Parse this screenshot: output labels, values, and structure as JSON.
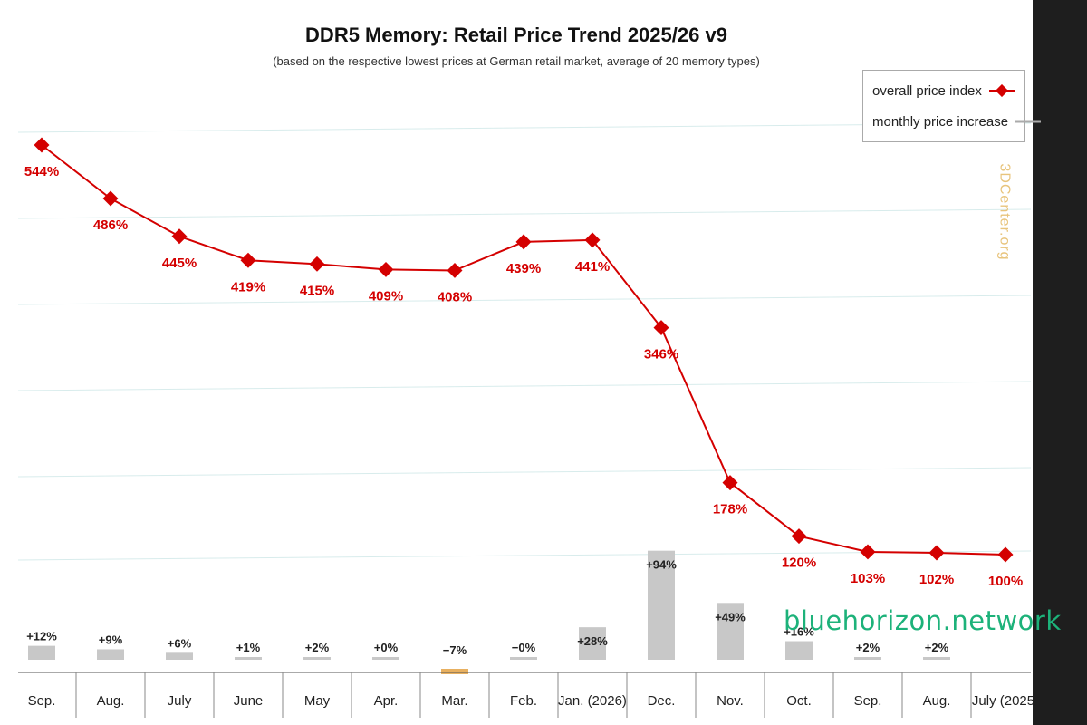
{
  "overlay": {
    "site": "bluehorizon.network"
  },
  "watermark": "3DCenter.org",
  "chart_data": {
    "type": "line",
    "title": "DDR5 Memory: Retail Price Trend 2025/26 v9",
    "subtitle": "(based on the respective lowest prices at German retail market, average of 20 memory types)",
    "categories": [
      "July (2025)",
      "Aug.",
      "Sep.",
      "Oct.",
      "Nov.",
      "Dec.",
      "Jan. (2026)",
      "Feb.",
      "Mar.",
      "Apr.",
      "May",
      "June",
      "July",
      "Aug.",
      "Sep."
    ],
    "legend_position": "top-right",
    "grid": true,
    "series": [
      {
        "name": "overall price index",
        "color": "#d40000",
        "values": [
          100,
          102,
          103,
          120,
          178,
          346,
          441,
          439,
          408,
          409,
          415,
          419,
          445,
          486,
          544
        ],
        "labels": [
          "100%",
          "102%",
          "103%",
          "120%",
          "178%",
          "346%",
          "441%",
          "439%",
          "408%",
          "409%",
          "415%",
          "419%",
          "445%",
          "486%",
          "544%"
        ]
      },
      {
        "name": "monthly price increase",
        "color": "#c8c8c8",
        "negative_color": "#e8b060",
        "values": [
          null,
          2,
          2,
          16,
          49,
          94,
          28,
          0,
          -7,
          0,
          2,
          1,
          6,
          9,
          12
        ],
        "labels": [
          "",
          "+2%",
          "+2%",
          "+16%",
          "+49%",
          "+94%",
          "+28%",
          "−0%",
          "−7%",
          "+0%",
          "+2%",
          "+1%",
          "+6%",
          "+9%",
          "+12%"
        ]
      }
    ]
  }
}
